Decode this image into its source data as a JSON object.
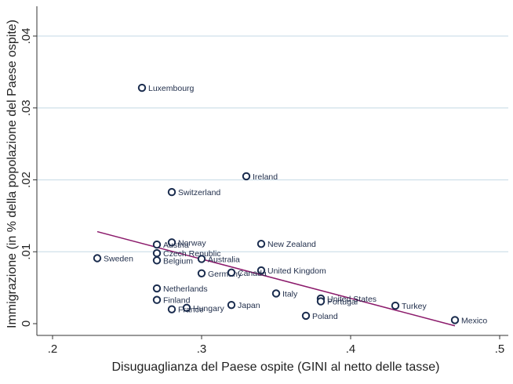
{
  "chart_data": {
    "type": "scatter",
    "xlabel": "Disuguaglianza del Paese ospite (GINI al netto delle tasse)",
    "ylabel": "Immigrazione (in % della popolazione del Paese ospite)",
    "xlim": [
      0.2,
      0.5
    ],
    "ylim": [
      0,
      0.04
    ],
    "xticks": [
      ".2",
      ".3",
      ".4",
      ".5"
    ],
    "yticks": [
      "0",
      ".01",
      ".02",
      ".03",
      ".04"
    ],
    "grid": "horizontal",
    "colors": {
      "marker": "#1a2c4e",
      "fit_line": "#8b1a6b",
      "grid": "#cfe0ea"
    },
    "points": [
      {
        "label": "Luxembourg",
        "x": 0.26,
        "y": 0.0328
      },
      {
        "label": "Ireland",
        "x": 0.33,
        "y": 0.0205
      },
      {
        "label": "Switzerland",
        "x": 0.28,
        "y": 0.0183
      },
      {
        "label": "Norway",
        "x": 0.28,
        "y": 0.0113
      },
      {
        "label": "Austria",
        "x": 0.27,
        "y": 0.011
      },
      {
        "label": "New Zealand",
        "x": 0.34,
        "y": 0.0111
      },
      {
        "label": "Czech Republic",
        "x": 0.27,
        "y": 0.0098
      },
      {
        "label": "Australia",
        "x": 0.3,
        "y": 0.009
      },
      {
        "label": "Belgium",
        "x": 0.27,
        "y": 0.0088
      },
      {
        "label": "Sweden",
        "x": 0.23,
        "y": 0.0091
      },
      {
        "label": "United Kingdom",
        "x": 0.34,
        "y": 0.0074
      },
      {
        "label": "Germany",
        "x": 0.3,
        "y": 0.007
      },
      {
        "label": "Canada",
        "x": 0.32,
        "y": 0.0071
      },
      {
        "label": "Netherlands",
        "x": 0.27,
        "y": 0.0049
      },
      {
        "label": "Italy",
        "x": 0.35,
        "y": 0.0042
      },
      {
        "label": "United States",
        "x": 0.38,
        "y": 0.0035
      },
      {
        "label": "Portugal",
        "x": 0.38,
        "y": 0.0031
      },
      {
        "label": "Finland",
        "x": 0.27,
        "y": 0.0033
      },
      {
        "label": "Japan",
        "x": 0.32,
        "y": 0.0026
      },
      {
        "label": "Turkey",
        "x": 0.43,
        "y": 0.0025
      },
      {
        "label": "Hungary",
        "x": 0.29,
        "y": 0.0022
      },
      {
        "label": "France",
        "x": 0.28,
        "y": 0.002
      },
      {
        "label": "Poland",
        "x": 0.37,
        "y": 0.0011
      },
      {
        "label": "Mexico",
        "x": 0.47,
        "y": 0.0005
      }
    ],
    "fit_line": {
      "x": [
        0.23,
        0.47
      ],
      "y": [
        0.0128,
        -0.0003
      ]
    }
  }
}
